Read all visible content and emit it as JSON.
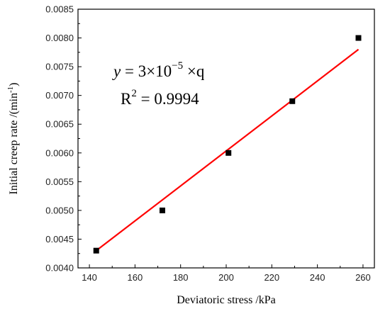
{
  "chart_data": {
    "type": "scatter",
    "title": "",
    "xlabel": "Deviatoric stress /kPa",
    "ylabel_main": "Initial creep rate /(min",
    "ylabel_sup": "-1",
    "ylabel_end": ")",
    "xlim": [
      135,
      265
    ],
    "ylim": [
      0.004,
      0.0085
    ],
    "xticks": [
      140,
      160,
      180,
      200,
      220,
      240,
      260
    ],
    "yticks": [
      0.004,
      0.0045,
      0.005,
      0.0055,
      0.006,
      0.0065,
      0.007,
      0.0075,
      0.008,
      0.0085
    ],
    "xtick_labels": [
      "140",
      "160",
      "180",
      "200",
      "220",
      "240",
      "260"
    ],
    "ytick_labels": [
      "0.0040",
      "0.0045",
      "0.0050",
      "0.0055",
      "0.0060",
      "0.0065",
      "0.0070",
      "0.0075",
      "0.0080",
      "0.0085"
    ],
    "grid": false,
    "series": [
      {
        "type": "scatter",
        "color": "#000000",
        "marker": "square",
        "x": [
          143,
          172,
          201,
          229,
          258
        ],
        "y": [
          0.0043,
          0.005,
          0.006,
          0.0069,
          0.008
        ]
      },
      {
        "type": "line",
        "color": "#ff0000",
        "x": [
          143,
          258
        ],
        "y": [
          0.0043,
          0.0078
        ]
      }
    ],
    "annotation": {
      "line1_y": "y",
      "line1_eq": " = 3×10",
      "line1_exp": "−5",
      "line1_tail": " ×q",
      "line2_r": "R",
      "line2_sup": "2",
      "line2_tail": " = 0.9994"
    }
  }
}
